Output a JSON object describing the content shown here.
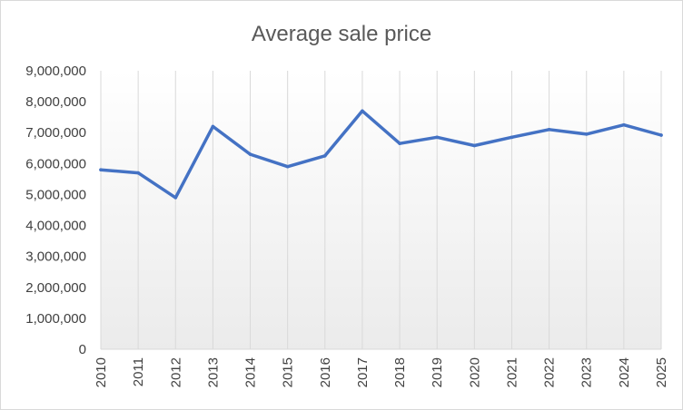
{
  "chart_data": {
    "type": "line",
    "title": "Average sale price",
    "xlabel": "",
    "ylabel": "",
    "categories": [
      "2010",
      "2011",
      "2012",
      "2013",
      "2014",
      "2015",
      "2016",
      "2017",
      "2018",
      "2019",
      "2020",
      "2021",
      "2022",
      "2023",
      "2024",
      "2025"
    ],
    "series": [
      {
        "values": [
          5800000,
          5700000,
          4900000,
          7200000,
          6300000,
          5900000,
          6250000,
          7700000,
          6650000,
          6850000,
          6580000,
          6850000,
          7100000,
          6950000,
          7250000,
          6920000
        ]
      }
    ],
    "ylim": [
      0,
      9000000
    ],
    "ytick_values": [
      0,
      1000000,
      2000000,
      3000000,
      4000000,
      5000000,
      6000000,
      7000000,
      8000000,
      9000000
    ],
    "ytick_labels": [
      "0",
      "1,000,000",
      "2,000,000",
      "3,000,000",
      "4,000,000",
      "5,000,000",
      "6,000,000",
      "7,000,000",
      "8,000,000",
      "9,000,000"
    ],
    "grid": "vertical",
    "legend": "none",
    "colors": {
      "line": "#4472c4",
      "grid": "#d9d9d9",
      "area_top": "#ffffff",
      "area_bottom": "#ebebeb"
    }
  }
}
